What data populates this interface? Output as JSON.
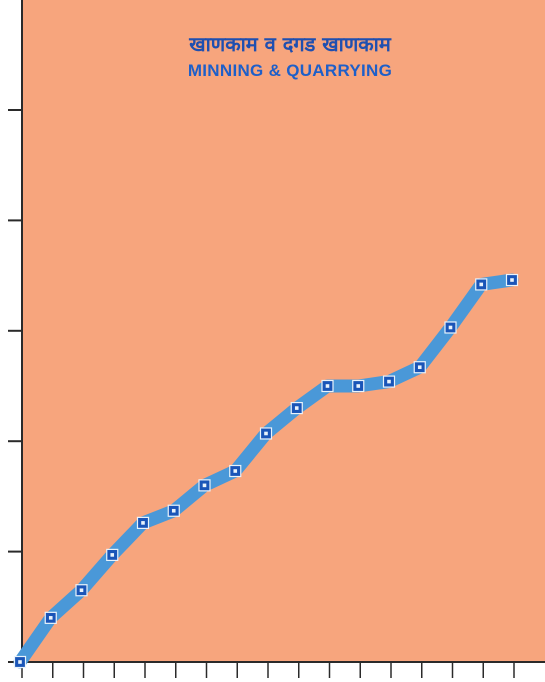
{
  "chart_data": {
    "type": "line",
    "title": "खाणकाम व दगड खाणकाम",
    "subtitle": "MINNING & QUARRYING",
    "xlabel": "",
    "ylabel": "",
    "x": [
      0,
      1,
      2,
      3,
      4,
      5,
      6,
      7,
      8,
      9,
      10,
      11,
      12,
      13,
      14,
      15,
      16
    ],
    "series": [
      {
        "name": "",
        "values": [
          0.0,
          0.4,
          0.65,
          0.97,
          1.26,
          1.37,
          1.6,
          1.73,
          2.07,
          2.3,
          2.5,
          2.5,
          2.54,
          2.67,
          3.03,
          3.42,
          3.46
        ]
      }
    ],
    "ylim": [
      0,
      5
    ],
    "xlim": [
      0,
      16
    ],
    "y_ticks": 5,
    "x_ticks": 16,
    "grid": false,
    "legend": "none",
    "colors": {
      "background": "#f7a57d",
      "line": "#4a98d8",
      "marker_fill": "#1a55b8",
      "marker_inner": "#e9f3fb",
      "axis": "#2a2a2a",
      "title_hi": "#1f4fb0",
      "title_en": "#1e5fc9"
    }
  }
}
